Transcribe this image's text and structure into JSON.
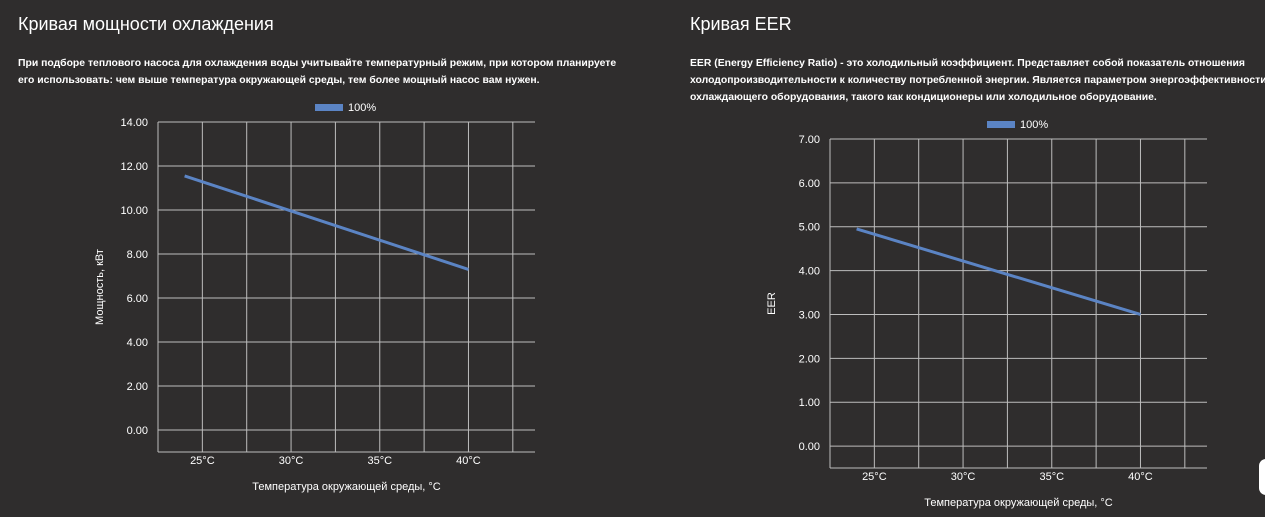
{
  "panels": [
    {
      "title": "Кривая мощности охлаждения",
      "description": "При подборе теплового насоса для охлаждения воды учитывайте температурный режим, при котором планируете его использовать: чем выше температура окружающей среды, тем более мощный насос вам нужен."
    },
    {
      "title": "Кривая EER",
      "description": "EER (Energy Efficiency Ratio) - это холодильный коэффициент. Представляет собой показатель отношения холодопроизводительности к количеству потребленной энергии. Является параметром энергоэффективности охлаждающего оборудования, такого как кондиционеры или холодильное оборудование."
    }
  ],
  "chart_data": [
    {
      "type": "line",
      "x": [
        24,
        40
      ],
      "series": [
        {
          "name": "100%",
          "values": [
            11.55,
            7.3
          ],
          "color": "#5b84c4"
        }
      ],
      "xticks": [
        25,
        30,
        35,
        40
      ],
      "xtick_labels": [
        "25°C",
        "30°C",
        "35°C",
        "40°C"
      ],
      "yticks": [
        0,
        2,
        4,
        6,
        8,
        10,
        12,
        14
      ],
      "ytick_labels": [
        "0.00",
        "2.00",
        "4.00",
        "6.00",
        "8.00",
        "10.00",
        "12.00",
        "14.00"
      ],
      "xlabel": "Температура окружающей среды, °C",
      "ylabel": "Мощность, кВт",
      "xlim": [
        22.5,
        43.75
      ],
      "ylim": [
        -1,
        14
      ],
      "grid": true,
      "legend_position": "top"
    },
    {
      "type": "line",
      "x": [
        24,
        40
      ],
      "series": [
        {
          "name": "100%",
          "values": [
            4.95,
            3.0
          ],
          "color": "#5b84c4"
        }
      ],
      "xticks": [
        25,
        30,
        35,
        40
      ],
      "xtick_labels": [
        "25°C",
        "30°C",
        "35°C",
        "40°C"
      ],
      "yticks": [
        0,
        1,
        2,
        3,
        4,
        5,
        6,
        7
      ],
      "ytick_labels": [
        "0.00",
        "1.00",
        "2.00",
        "3.00",
        "4.00",
        "5.00",
        "6.00",
        "7.00"
      ],
      "xlabel": "Температура окружающей среды, °C",
      "ylabel": "EER",
      "xlim": [
        22.5,
        43.75
      ],
      "ylim": [
        -0.5,
        7
      ],
      "grid": true,
      "legend_position": "top"
    }
  ]
}
